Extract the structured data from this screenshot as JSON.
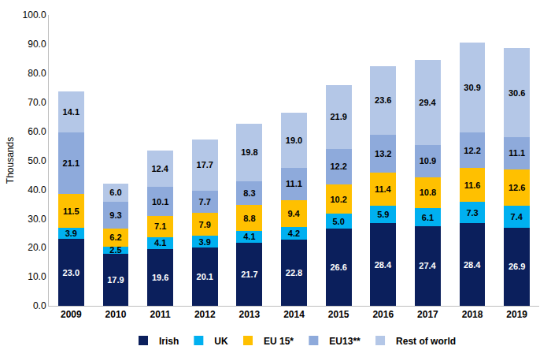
{
  "chart_data": {
    "type": "bar",
    "stacked": true,
    "data_labels": true,
    "grid": false,
    "legend": "bottom",
    "y_label": "Thousands",
    "categories": [
      "2009",
      "2010",
      "2011",
      "2012",
      "2013",
      "2014",
      "2015",
      "2016",
      "2017",
      "2018",
      "2019"
    ],
    "ylim": [
      0,
      100
    ],
    "yticks": [
      {
        "value": 0,
        "label": "0.0"
      },
      {
        "value": 10,
        "label": "10.0"
      },
      {
        "value": 20,
        "label": "20.0"
      },
      {
        "value": 30,
        "label": "30.0"
      },
      {
        "value": 40,
        "label": "40.0"
      },
      {
        "value": 50,
        "label": "50.0"
      },
      {
        "value": 60,
        "label": "60.0"
      },
      {
        "value": 70,
        "label": "70.0"
      },
      {
        "value": 80,
        "label": "80.0"
      },
      {
        "value": 90,
        "label": "90.0"
      },
      {
        "value": 100,
        "label": "100.0"
      }
    ],
    "series": [
      {
        "name": "Irish",
        "color": "#0b1f5c",
        "values": [
          23.0,
          17.9,
          19.6,
          20.1,
          21.7,
          22.8,
          26.6,
          28.4,
          27.4,
          28.4,
          26.9
        ],
        "value_labels": [
          "23.0",
          "17.9",
          "19.6",
          "20.1",
          "21.7",
          "22.8",
          "26.6",
          "28.4",
          "27.4",
          "28.4",
          "26.9"
        ]
      },
      {
        "name": "UK",
        "color": "#00b0f0",
        "values": [
          3.9,
          2.5,
          4.1,
          3.9,
          4.1,
          4.2,
          5.0,
          5.9,
          6.1,
          7.3,
          7.4
        ],
        "value_labels": [
          "3.9",
          "2.5",
          "4.1",
          "3.9",
          "4.1",
          "4.2",
          "5.0",
          "5.9",
          "6.1",
          "7.3",
          "7.4"
        ]
      },
      {
        "name": "EU 15*",
        "color": "#ffc000",
        "values": [
          11.5,
          6.2,
          7.1,
          7.9,
          8.8,
          9.4,
          10.2,
          11.4,
          10.8,
          11.6,
          12.6
        ],
        "value_labels": [
          "11.5",
          "6.2",
          "7.1",
          "7.9",
          "8.8",
          "9.4",
          "10.2",
          "11.4",
          "10.8",
          "11.6",
          "12.6"
        ]
      },
      {
        "name": "EU13**",
        "color": "#8eaadb",
        "values": [
          21.1,
          9.3,
          10.1,
          7.7,
          8.3,
          11.1,
          12.2,
          13.2,
          10.9,
          12.2,
          11.1
        ],
        "value_labels": [
          "21.1",
          "9.3",
          "10.1",
          "7.7",
          "8.3",
          "11.1",
          "12.2",
          "13.2",
          "10.9",
          "12.2",
          "11.1"
        ]
      },
      {
        "name": "Rest of world",
        "color": "#b4c7e7",
        "values": [
          14.1,
          6.0,
          12.4,
          17.7,
          19.8,
          19.0,
          21.9,
          23.6,
          29.4,
          30.9,
          30.6
        ],
        "value_labels": [
          "14.1",
          "6.0",
          "12.4",
          "17.7",
          "19.8",
          "19.0",
          "21.9",
          "23.6",
          "29.4",
          "30.9",
          "30.6"
        ]
      }
    ]
  }
}
